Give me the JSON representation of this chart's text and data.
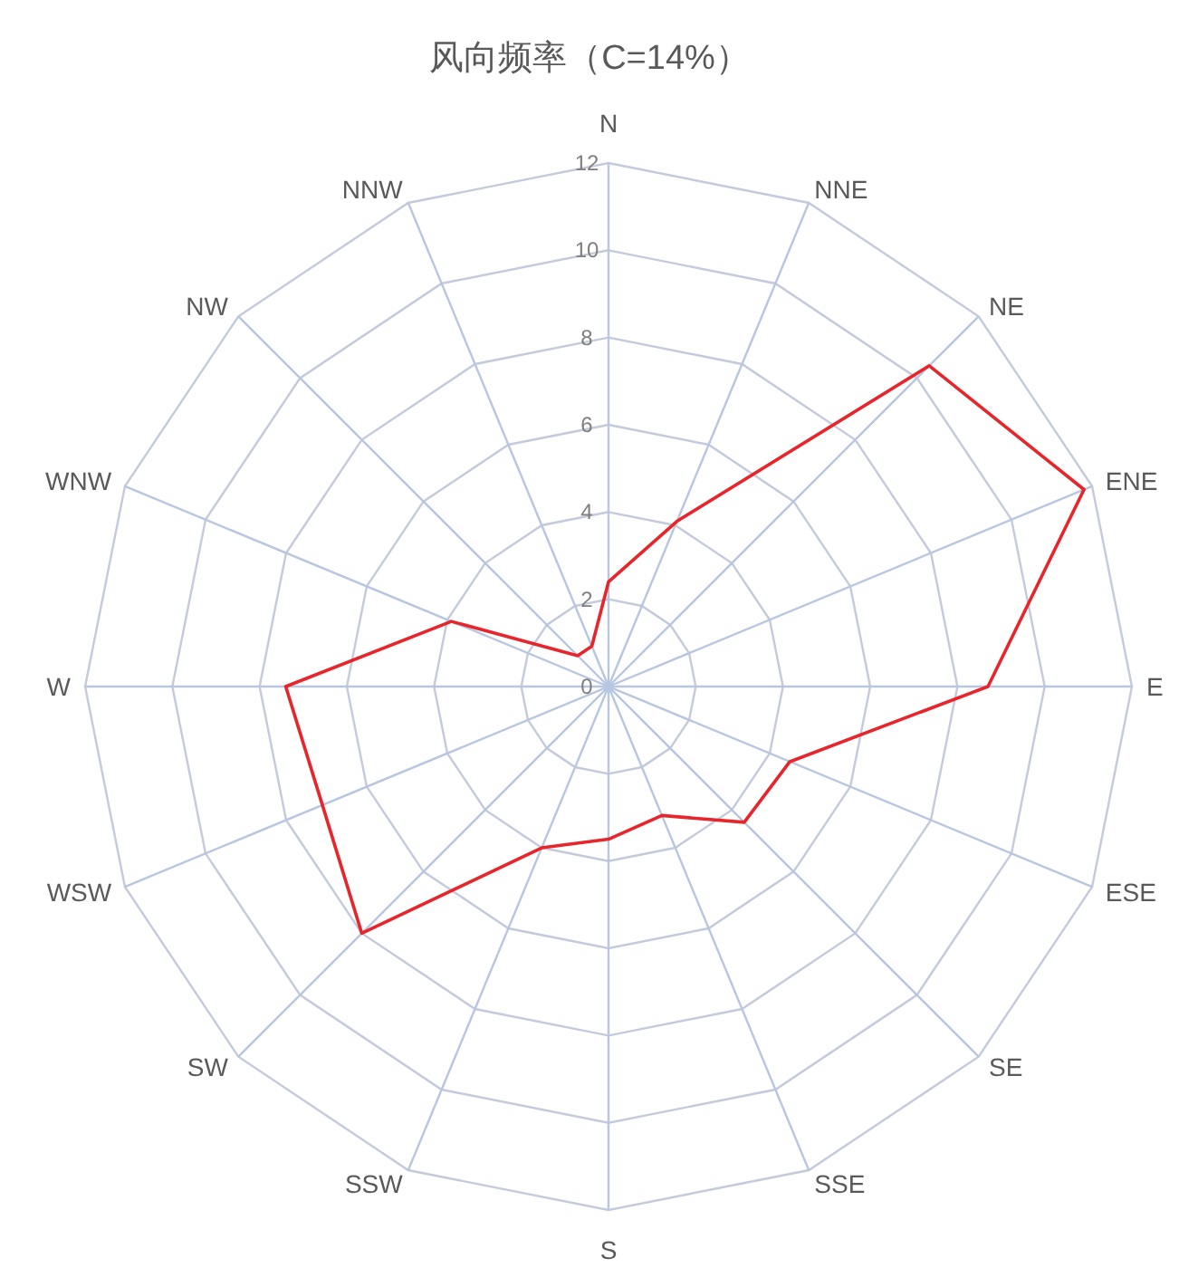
{
  "chart_data": {
    "type": "radar",
    "title": "风向频率（C=14%）",
    "categories": [
      "N",
      "NNE",
      "NE",
      "ENE",
      "E",
      "ESE",
      "SE",
      "SSE",
      "S",
      "SSW",
      "SW",
      "WSW",
      "W",
      "WNW",
      "NW",
      "NNW"
    ],
    "series": [
      {
        "color": "#e8252b",
        "values": [
          2.4,
          4.1,
          10.4,
          11.8,
          8.7,
          4.5,
          4.4,
          3.2,
          3.5,
          4.0,
          8.0,
          7.1,
          7.4,
          3.9,
          1.0,
          1.0
        ]
      }
    ],
    "ylim": [
      0,
      12
    ],
    "yticks": [
      0,
      2,
      4,
      6,
      8,
      10,
      12
    ],
    "grid": true
  }
}
